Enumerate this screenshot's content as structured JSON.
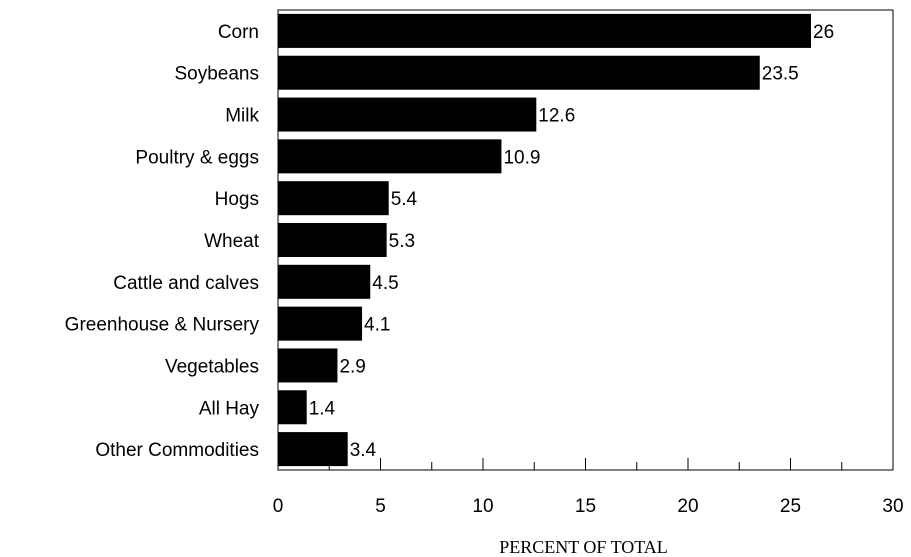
{
  "chart_data": {
    "type": "bar",
    "orientation": "horizontal",
    "categories": [
      "Corn",
      "Soybeans",
      "Milk",
      "Poultry & eggs",
      "Hogs",
      "Wheat",
      "Cattle and calves",
      "Greenhouse & Nursery",
      "Vegetables",
      "All Hay",
      "Other Commodities"
    ],
    "values": [
      26,
      23.5,
      12.6,
      10.9,
      5.4,
      5.3,
      4.5,
      4.1,
      2.9,
      1.4,
      3.4
    ],
    "value_labels": [
      "26",
      "23.5",
      "12.6",
      "10.9",
      "5.4",
      "5.3",
      "4.5",
      "4.1",
      "2.9",
      "1.4",
      "3.4"
    ],
    "title": "",
    "xlabel": "PERCENT OF TOTAL",
    "ylabel": "",
    "xlim": [
      0,
      30
    ],
    "x_ticks": [
      0,
      5,
      10,
      15,
      20,
      25,
      30
    ],
    "x_tick_labels": [
      "0",
      "5",
      "10",
      "15",
      "20",
      "25",
      "30"
    ],
    "grid": false,
    "bar_color": "#000000"
  }
}
